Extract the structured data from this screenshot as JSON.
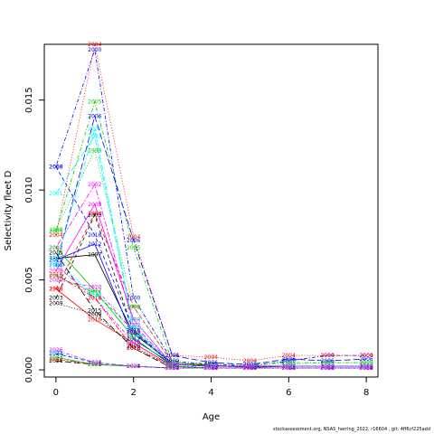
{
  "chart_data": {
    "type": "line",
    "title": "",
    "xlabel": "Age",
    "ylabel": "Selectivity fleet D",
    "x": [
      0,
      1,
      2,
      3,
      4,
      5,
      6,
      7,
      8
    ],
    "xticks": [
      "0",
      "2",
      "4",
      "6",
      "8"
    ],
    "yticks": [
      "0.000",
      "0.005",
      "0.010",
      "0.015"
    ],
    "xlim": [
      -0.3,
      8.3
    ],
    "ylim": [
      -0.0004,
      0.0181
    ],
    "grid": false,
    "legend": "none",
    "series": [
      {
        "name": "1997",
        "color": "#000000",
        "dash": "solid",
        "values": [
          0.0062,
          0.0064,
          0.002,
          0.0004,
          0.00025,
          0.00015,
          0.0002,
          0.0002,
          0.0002
        ]
      },
      {
        "name": "1998",
        "color": "#ff0000",
        "dash": "dashed",
        "values": [
          0.0045,
          0.0087,
          0.0035,
          0.0004,
          0.0002,
          0.00015,
          0.0002,
          0.0002,
          0.0002
        ]
      },
      {
        "name": "1999",
        "color": "#00cd00",
        "dash": "dotted",
        "values": [
          0.0078,
          0.0122,
          0.0035,
          0.0004,
          0.0002,
          0.0002,
          0.0003,
          0.0004,
          0.0004
        ]
      },
      {
        "name": "2000",
        "color": "#0000ff",
        "dash": "dotdash",
        "values": [
          0.0113,
          0.0178,
          0.004,
          0.0005,
          0.0003,
          0.0002,
          0.0005,
          0.0008,
          0.0008
        ]
      },
      {
        "name": "2001",
        "color": "#00ffff",
        "dash": "longdash",
        "values": [
          0.0098,
          0.013,
          0.0023,
          0.0003,
          0.0002,
          0.0002,
          0.0002,
          0.0002,
          0.0002
        ]
      },
      {
        "name": "2002",
        "color": "#ff00ff",
        "dash": "twodash",
        "values": [
          0.0068,
          0.0103,
          0.0025,
          0.0003,
          0.0002,
          0.0002,
          0.0002,
          0.0002,
          0.0002
        ]
      },
      {
        "name": "2003",
        "color": "#000000",
        "dash": "dashed",
        "values": [
          0.004,
          0.0086,
          0.0021,
          0.0003,
          0.0002,
          0.0002,
          0.0002,
          0.0002,
          0.0002
        ]
      },
      {
        "name": "2004",
        "color": "#ff0000",
        "dash": "dotted",
        "values": [
          0.0075,
          0.0181,
          0.0074,
          0.0008,
          0.0007,
          0.0005,
          0.0008,
          0.0008,
          0.0008
        ]
      },
      {
        "name": "2005",
        "color": "#00cd00",
        "dash": "dotdash",
        "values": [
          0.0077,
          0.0149,
          0.0068,
          0.0004,
          0.0003,
          0.0003,
          0.0004,
          0.0004,
          0.0004
        ]
      },
      {
        "name": "2006",
        "color": "#0000ff",
        "dash": "longdash",
        "values": [
          0.0058,
          0.0141,
          0.0072,
          0.0008,
          0.0004,
          0.0003,
          0.0006,
          0.0005,
          0.0006
        ]
      },
      {
        "name": "2007",
        "color": "#00ffff",
        "dash": "twodash",
        "values": [
          0.0059,
          0.0134,
          0.0024,
          0.0002,
          0.0002,
          0.0002,
          0.0002,
          0.0002,
          0.0002
        ]
      },
      {
        "name": "2008",
        "color": "#ff00ff",
        "dash": "solid",
        "values": [
          0.0055,
          0.0092,
          0.0028,
          0.0003,
          0.0002,
          0.0002,
          0.0002,
          0.0002,
          0.0002
        ]
      },
      {
        "name": "2009",
        "color": "#000000",
        "dash": "dotted",
        "values": [
          0.0037,
          0.0031,
          0.0013,
          0.0002,
          0.0001,
          0.0001,
          0.0001,
          0.0001,
          0.0001
        ]
      },
      {
        "name": "2010",
        "color": "#ff0000",
        "dash": "solid",
        "values": [
          0.0045,
          0.0028,
          0.0015,
          0.0002,
          0.0001,
          0.0001,
          0.0001,
          0.0001,
          0.0001
        ]
      },
      {
        "name": "2011",
        "color": "#00cd00",
        "dash": "dashed",
        "values": [
          0.0052,
          0.0043,
          0.0022,
          0.0002,
          0.0001,
          0.0001,
          0.0001,
          0.0001,
          0.0001
        ]
      },
      {
        "name": "2012",
        "color": "#0000ff",
        "dash": "solid",
        "values": [
          0.0061,
          0.007,
          0.0017,
          0.0003,
          0.0002,
          0.0002,
          0.0002,
          0.0002,
          0.0002
        ]
      },
      {
        "name": "2013",
        "color": "#00ffff",
        "dash": "dotted",
        "values": [
          0.0062,
          0.004,
          0.002,
          0.0003,
          0.0002,
          0.0002,
          0.0002,
          0.0002,
          0.0002
        ]
      },
      {
        "name": "2014",
        "color": "#ff00ff",
        "dash": "dotdash",
        "values": [
          0.0058,
          0.004,
          0.0015,
          0.0002,
          0.0001,
          0.0001,
          0.0001,
          0.0001,
          0.0001
        ]
      },
      {
        "name": "2015",
        "color": "#000000",
        "dash": "longdash",
        "values": [
          0.0065,
          0.0033,
          0.0012,
          0.0001,
          0.0001,
          0.0001,
          0.0001,
          0.0001,
          0.0001
        ]
      },
      {
        "name": "2016",
        "color": "#ff0000",
        "dash": "twodash",
        "values": [
          0.0053,
          0.004,
          0.0012,
          0.0002,
          0.0001,
          0.0001,
          0.0001,
          0.0001,
          0.0001
        ]
      },
      {
        "name": "2017",
        "color": "#00cd00",
        "dash": "solid",
        "values": [
          0.0068,
          0.0044,
          0.0018,
          0.0002,
          0.0001,
          0.0001,
          0.0001,
          0.0001,
          0.0001
        ]
      },
      {
        "name": "2018",
        "color": "#0000ff",
        "dash": "dashed",
        "values": [
          0.0113,
          0.0075,
          0.0022,
          0.0003,
          0.0002,
          0.0002,
          0.0002,
          0.0002,
          0.0002
        ]
      },
      {
        "name": "2019",
        "color": "#00ffff",
        "dash": "dotted",
        "values": [
          0.0058,
          0.0042,
          0.0028,
          0.0003,
          0.0002,
          0.0002,
          0.0002,
          0.0002,
          0.0002
        ]
      },
      {
        "name": "2020",
        "color": "#ff00ff",
        "dash": "dotdash",
        "values": [
          0.005,
          0.0046,
          0.0021,
          0.0003,
          0.0002,
          0.0002,
          0.0002,
          0.0002,
          0.0002
        ]
      },
      {
        "name": "2021",
        "color": "#000000",
        "dash": "longdash",
        "values": [
          0.0005,
          0.0003,
          0.0002,
          0.0001,
          0.0001,
          0.0001,
          0.0001,
          0.0001,
          0.0001
        ]
      },
      {
        "name": "2022",
        "color": "#ff0000",
        "dash": "twodash",
        "values": [
          0.0006,
          0.0003,
          0.0002,
          0.0001,
          0.0001,
          0.0001,
          0.0001,
          0.0001,
          0.0001
        ]
      },
      {
        "name": "2023",
        "color": "#00cd00",
        "dash": "solid",
        "values": [
          0.0007,
          0.0003,
          0.0002,
          0.0001,
          0.0001,
          0.0001,
          0.0001,
          0.0001,
          0.0001
        ]
      },
      {
        "name": "2024",
        "color": "#0000ff",
        "dash": "dashed",
        "values": [
          0.0009,
          0.0004,
          0.0002,
          0.0001,
          0.0001,
          0.0001,
          0.0001,
          0.0001,
          0.0001
        ]
      },
      {
        "name": "2025",
        "color": "#00ffff",
        "dash": "dotted",
        "values": [
          0.001,
          0.0004,
          0.0002,
          0.0001,
          0.0001,
          0.0001,
          0.0001,
          0.0001,
          0.0001
        ]
      },
      {
        "name": "2026",
        "color": "#ff00ff",
        "dash": "dotdash",
        "values": [
          0.0011,
          0.0004,
          0.0002,
          0.0001,
          0.0001,
          0.0001,
          0.0001,
          0.0001,
          0.0001
        ]
      }
    ]
  },
  "footer": "stockassessment.org, NSAS_herring_2022, r16604 , git: 4ff6cf225add"
}
